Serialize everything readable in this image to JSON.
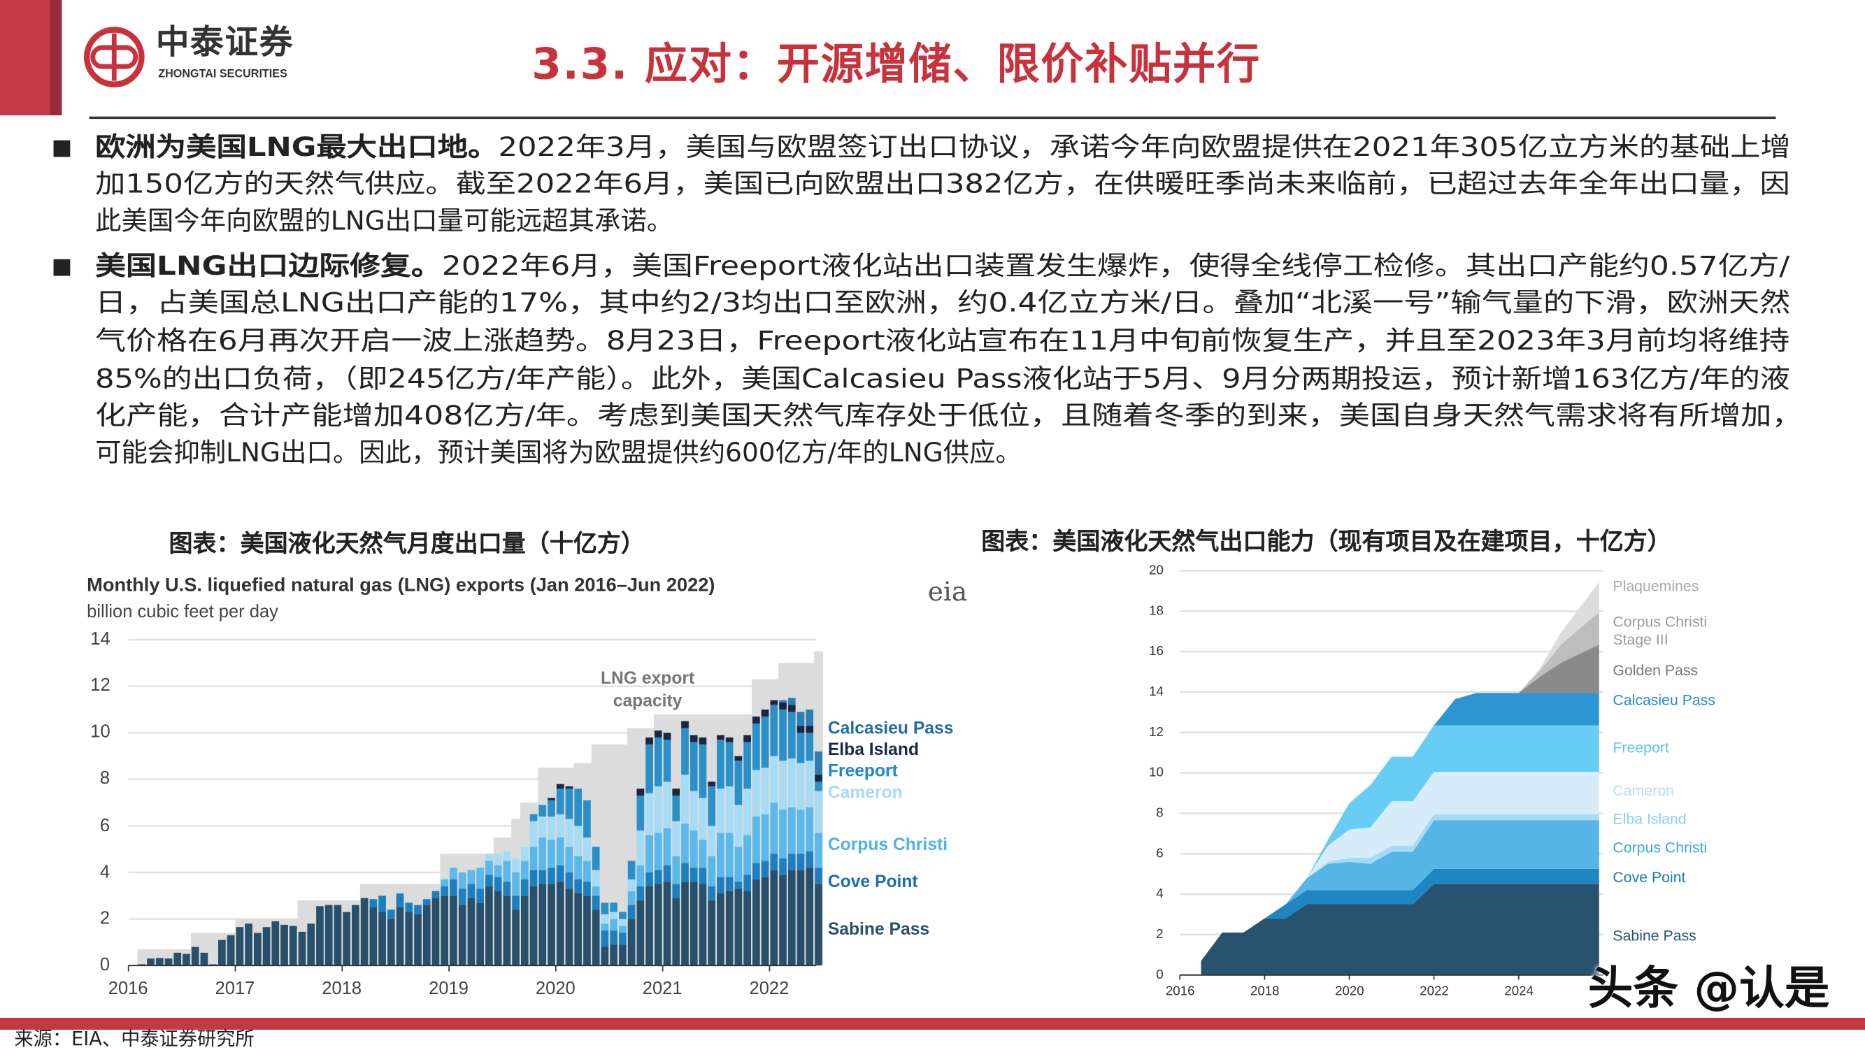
{
  "header": {
    "logo_cn": "中泰证券",
    "logo_en": "ZHONGTAI SECURITIES",
    "title": "3.3.  应对：开源增储、限价补贴并行",
    "brand_color": "#c8323c"
  },
  "paragraphs": [
    {
      "lead": "欧洲为美国LNG最大出口地。",
      "lines": [
        "2022年3月，美国与欧盟签订出口协议，承诺今年向欧盟提供在2021年305亿立方米的基础上增",
        "加150亿方的天然气供应。截至2022年6月，美国已向欧盟出口382亿方，在供暖旺季尚未来临前，已超过去年全年出口量，因",
        "此美国今年向欧盟的LNG出口量可能远超其承诺。"
      ]
    },
    {
      "lead": "美国LNG出口边际修复。",
      "lines": [
        "2022年6月，美国Freeport液化站出口装置发生爆炸，使得全线停工检修。其出口产能约0.57亿方/",
        "日，占美国总LNG出口产能的17%，其中约2/3均出口至欧洲，约0.4亿立方米/日。叠加“北溪一号”输气量的下滑，欧洲天然",
        "气价格在6月再次开启一波上涨趋势。8月23日，Freeport液化站宣布在11月中旬前恢复生产，并且至2023年3月前均将维持",
        "85%的出口负荷，（即245亿方/年产能）。此外，美国Calcasieu Pass液化站于5月、9月分两期投运，预计新增163亿方/年的液",
        "化产能，合计产能增加408亿方/年。考虑到美国天然气库存处于低位，且随着冬季的到来，美国自身天然气需求将有所增加，",
        "可能会抑制LNG出口。因此，预计美国将为欧盟提供约600亿方/年的LNG供应。"
      ]
    }
  ],
  "figure_captions": [
    "图表：美国液化天然气月度出口量（十亿方）",
    "图表：美国液化天然气出口能力（现有项目及在建项目，十亿方）"
  ],
  "chart_data": [
    {
      "type": "bar",
      "stacked": true,
      "title": "Monthly U.S. liquefied natural gas (LNG) exports (Jan 2016–Jun 2022)",
      "ylabel": "billion cubic feet per day",
      "logo": "eia",
      "x_start": "2016-01",
      "x_end": "2022-06",
      "frequency": "monthly",
      "xticks": [
        "2016",
        "2017",
        "2018",
        "2019",
        "2020",
        "2021",
        "2022"
      ],
      "yticks": [
        0,
        2,
        4,
        6,
        8,
        10,
        12,
        14
      ],
      "ylim": [
        0,
        14
      ],
      "grid": true,
      "annotation": [
        "LNG export",
        "capacity"
      ],
      "capacity_color": "#dcdcdc",
      "capacity_steps": [
        [
          "2016-02",
          0.7
        ],
        [
          "2016-08",
          1.4
        ],
        [
          "2017-01",
          2.0
        ],
        [
          "2017-08",
          2.8
        ],
        [
          "2018-03",
          3.5
        ],
        [
          "2018-12",
          4.8
        ],
        [
          "2019-06",
          5.5
        ],
        [
          "2019-08",
          6.3
        ],
        [
          "2019-09",
          7.0
        ],
        [
          "2019-11",
          8.5
        ],
        [
          "2020-03",
          8.7
        ],
        [
          "2020-05",
          9.5
        ],
        [
          "2020-09",
          10.2
        ],
        [
          "2020-12",
          10.8
        ],
        [
          "2021-11",
          12.3
        ],
        [
          "2022-02",
          13.0
        ],
        [
          "2022-06",
          13.5
        ]
      ],
      "series": [
        {
          "name": "Sabine Pass",
          "color": "#28506b",
          "label_color": "#28506b",
          "values": [
            0,
            0.05,
            0.3,
            0.32,
            0.3,
            0.55,
            0.5,
            0.8,
            0.55,
            0.05,
            1.1,
            1.3,
            1.65,
            1.8,
            1.4,
            1.65,
            1.9,
            1.75,
            1.7,
            1.45,
            1.8,
            2.55,
            2.6,
            2.6,
            2.3,
            2.6,
            2.9,
            2.5,
            2.3,
            2.0,
            2.5,
            2.3,
            2.2,
            2.6,
            2.9,
            3.0,
            3.0,
            2.6,
            2.9,
            2.7,
            3.4,
            3.2,
            3.0,
            2.4,
            3.0,
            3.4,
            3.5,
            3.5,
            3.6,
            3.3,
            3.1,
            3.0,
            2.4,
            0.8,
            0.9,
            0.9,
            2.0,
            2.8,
            3.4,
            3.5,
            3.6,
            2.9,
            3.6,
            3.6,
            3.5,
            2.8,
            3.1,
            3.2,
            3.3,
            3.2,
            3.7,
            3.8,
            4.1,
            3.9,
            4.1,
            4.1,
            4.2,
            3.5
          ]
        },
        {
          "name": "Cove Point",
          "color": "#1e7fbf",
          "label_color": "#1e6fa8",
          "values": [
            0,
            0,
            0,
            0,
            0,
            0,
            0,
            0,
            0,
            0,
            0,
            0,
            0,
            0,
            0,
            0,
            0,
            0,
            0,
            0,
            0,
            0,
            0,
            0,
            0,
            0,
            0,
            0.35,
            0.7,
            0.4,
            0.6,
            0.4,
            0.4,
            0.25,
            0.3,
            0.4,
            0.7,
            0.7,
            0.6,
            0.6,
            0.5,
            0.6,
            0.6,
            0.6,
            0.7,
            0.7,
            0.6,
            0.7,
            0.7,
            0.7,
            0.6,
            0.6,
            0.6,
            0.7,
            0.6,
            0.5,
            0.6,
            0.6,
            0.6,
            0.6,
            0.7,
            0.6,
            0.8,
            0.6,
            0.7,
            0.6,
            0.7,
            0.6,
            0.3,
            0.7,
            0.7,
            0.7,
            0.7,
            0.7,
            0.7,
            0.7,
            0.7,
            0.7
          ]
        },
        {
          "name": "Corpus Christi",
          "color": "#5ab8ea",
          "label_color": "#4fb3e6",
          "values": [
            0,
            0,
            0,
            0,
            0,
            0,
            0,
            0,
            0,
            0,
            0,
            0,
            0,
            0,
            0,
            0,
            0,
            0,
            0,
            0,
            0,
            0,
            0,
            0,
            0,
            0,
            0,
            0,
            0,
            0,
            0,
            0,
            0,
            0,
            0,
            0.3,
            0.5,
            0.7,
            0.6,
            0.9,
            0.6,
            0.5,
            0.9,
            1.0,
            0.8,
            1.0,
            1.4,
            1.2,
            1.2,
            1.1,
            1.0,
            0.9,
            0.4,
            0.3,
            0.5,
            0.3,
            0.6,
            0.9,
            1.6,
            1.6,
            1.6,
            1.2,
            1.7,
            1.6,
            1.2,
            1.3,
            1.9,
            1.9,
            1.5,
            1.7,
            2.0,
            2.0,
            2.2,
            2.1,
            2.0,
            1.9,
            1.9,
            1.5
          ]
        },
        {
          "name": "Cameron",
          "color": "#a6dcf5",
          "label_color": "#a6dcf5",
          "values": [
            0,
            0,
            0,
            0,
            0,
            0,
            0,
            0,
            0,
            0,
            0,
            0,
            0,
            0,
            0,
            0,
            0,
            0,
            0,
            0,
            0,
            0,
            0,
            0,
            0,
            0,
            0,
            0,
            0,
            0,
            0,
            0,
            0,
            0,
            0,
            0,
            0,
            0,
            0,
            0,
            0.3,
            0.5,
            0.4,
            0.6,
            0.6,
            1.1,
            0.9,
            1.0,
            1.0,
            1.2,
            1.3,
            1.0,
            0.7,
            0.4,
            0.3,
            0.3,
            0.5,
            1.5,
            1.8,
            2.0,
            2.0,
            1.5,
            2.1,
            1.7,
            1.8,
            1.3,
            1.9,
            2.0,
            1.8,
            2.0,
            2.0,
            2.0,
            2.0,
            2.1,
            2.1,
            2.0,
            2.0,
            1.8
          ]
        },
        {
          "name": "Freeport",
          "color": "#2b8fc8",
          "label_color": "#1e88c8",
          "values": [
            0,
            0,
            0,
            0,
            0,
            0,
            0,
            0,
            0,
            0,
            0,
            0,
            0,
            0,
            0,
            0,
            0,
            0,
            0,
            0,
            0,
            0,
            0,
            0,
            0,
            0,
            0,
            0,
            0,
            0,
            0,
            0,
            0,
            0,
            0,
            0,
            0,
            0,
            0,
            0,
            0,
            0,
            0,
            0,
            0,
            0.3,
            0.5,
            0.7,
            1.1,
            1.3,
            1.6,
            1.6,
            1.0,
            0.5,
            0.4,
            0.3,
            0.8,
            1.5,
            2.1,
            2.1,
            1.8,
            1.1,
            2.0,
            2.1,
            2.3,
            1.7,
            2.1,
            1.9,
            1.9,
            2.0,
            2.0,
            2.2,
            2.2,
            2.2,
            2.0,
            1.3,
            1.2,
            0.4
          ]
        },
        {
          "name": "Elba Island",
          "color": "#1c2640",
          "label_color": "#1b2a44",
          "values": [
            0,
            0,
            0,
            0,
            0,
            0,
            0,
            0,
            0,
            0,
            0,
            0,
            0,
            0,
            0,
            0,
            0,
            0,
            0,
            0,
            0,
            0,
            0,
            0,
            0,
            0,
            0,
            0,
            0,
            0,
            0,
            0,
            0,
            0,
            0,
            0,
            0,
            0,
            0,
            0,
            0,
            0,
            0,
            0,
            0,
            0,
            0,
            0.1,
            0.2,
            0.1,
            0,
            0,
            0,
            0,
            0,
            0,
            0,
            0.3,
            0.3,
            0.3,
            0.3,
            0.3,
            0.3,
            0.3,
            0.3,
            0.2,
            0.2,
            0.2,
            0.2,
            0.3,
            0.3,
            0.3,
            0.2,
            0.3,
            0.3,
            0.3,
            0.3,
            0.3
          ]
        },
        {
          "name": "Calcasieu Pass",
          "color": "#2a7fb5",
          "label_color": "#1f6e9e",
          "values": [
            0,
            0,
            0,
            0,
            0,
            0,
            0,
            0,
            0,
            0,
            0,
            0,
            0,
            0,
            0,
            0,
            0,
            0,
            0,
            0,
            0,
            0,
            0,
            0,
            0,
            0,
            0,
            0,
            0,
            0,
            0,
            0,
            0,
            0,
            0,
            0,
            0,
            0,
            0,
            0,
            0,
            0,
            0,
            0,
            0,
            0,
            0,
            0,
            0,
            0,
            0,
            0,
            0,
            0,
            0,
            0,
            0,
            0,
            0,
            0,
            0,
            0,
            0,
            0,
            0,
            0,
            0,
            0,
            0,
            0,
            0,
            0,
            0,
            0.1,
            0.3,
            0.6,
            0.7,
            1.0
          ]
        }
      ]
    },
    {
      "type": "area",
      "stacked": true,
      "x": [
        2016.5,
        2017,
        2017.5,
        2018,
        2018.5,
        2019,
        2019.5,
        2020,
        2020.5,
        2021,
        2021.5,
        2022,
        2022.5,
        2023,
        2024,
        2024.5,
        2025,
        2025.9
      ],
      "xticks": [
        "2016",
        "2018",
        "2020",
        "2022",
        "2024"
      ],
      "yticks": [
        0,
        2,
        4,
        6,
        8,
        10,
        12,
        14,
        16,
        18,
        20
      ],
      "ylim": [
        0,
        20
      ],
      "grid": true,
      "series": [
        {
          "name": "Sabine Pass",
          "color": "#28536f",
          "label_color": "#28536f",
          "values": [
            0.7,
            2.1,
            2.1,
            2.8,
            2.8,
            3.5,
            3.5,
            3.5,
            3.5,
            3.5,
            3.5,
            4.5,
            4.5,
            4.5,
            4.5,
            4.5,
            4.5,
            4.5
          ]
        },
        {
          "name": "Cove Point",
          "color": "#1f86c2",
          "label_color": "#1f76b2",
          "values": [
            0,
            0,
            0,
            0,
            0.7,
            0.7,
            0.7,
            0.7,
            0.7,
            0.7,
            0.7,
            0.75,
            0.75,
            0.75,
            0.75,
            0.75,
            0.75,
            0.75
          ]
        },
        {
          "name": "Corpus Christi",
          "color": "#55b5e6",
          "label_color": "#3aa6de",
          "values": [
            0,
            0,
            0,
            0,
            0,
            0.6,
            1.3,
            1.4,
            1.3,
            1.9,
            1.9,
            2.4,
            2.4,
            2.4,
            2.4,
            2.4,
            2.4,
            2.4
          ]
        },
        {
          "name": "Elba Island",
          "color": "#a7dbf3",
          "label_color": "#8ccdee",
          "values": [
            0,
            0,
            0,
            0,
            0,
            0,
            0.1,
            0.2,
            0.3,
            0.3,
            0.3,
            0.3,
            0.3,
            0.3,
            0.3,
            0.3,
            0.3,
            0.3
          ]
        },
        {
          "name": "Cameron",
          "color": "#d6edf9",
          "label_color": "#b3def4",
          "values": [
            0,
            0,
            0,
            0,
            0,
            0,
            0.8,
            1.4,
            1.5,
            2.2,
            2.2,
            2.1,
            2.1,
            2.1,
            2.1,
            2.1,
            2.1,
            2.1
          ]
        },
        {
          "name": "Freeport",
          "color": "#67cdf5",
          "label_color": "#5ec4ef",
          "values": [
            0,
            0,
            0,
            0,
            0,
            0,
            0.3,
            1.3,
            2.1,
            2.2,
            2.2,
            2.3,
            2.3,
            2.3,
            2.3,
            2.3,
            2.3,
            2.3
          ]
        },
        {
          "name": "Calcasieu Pass",
          "color": "#2e95d3",
          "label_color": "#2290cc",
          "values": [
            0,
            0,
            0,
            0,
            0,
            0,
            0,
            0,
            0,
            0,
            0,
            0,
            1.3,
            1.6,
            1.6,
            1.6,
            1.6,
            1.6
          ]
        },
        {
          "name": "Golden Pass",
          "color": "#8a8a8a",
          "label_color": "#777777",
          "values": [
            0,
            0,
            0,
            0,
            0,
            0,
            0,
            0,
            0,
            0,
            0,
            0,
            0,
            0,
            0,
            0.8,
            1.5,
            2.4
          ]
        },
        {
          "name": "Corpus Christi Stage III",
          "color": "#bdbdbd",
          "label_color": "#9a9a9a",
          "values": [
            0,
            0,
            0,
            0,
            0,
            0,
            0,
            0,
            0,
            0,
            0,
            0,
            0,
            0,
            0,
            0.3,
            0.9,
            1.6
          ]
        },
        {
          "name": "Plaquemines",
          "color": "#dcdcdc",
          "label_color": "#aaaaaa",
          "values": [
            0,
            0,
            0,
            0,
            0,
            0,
            0,
            0,
            0,
            0,
            0,
            0,
            0,
            0,
            0,
            0.1,
            0.6,
            1.5
          ]
        }
      ]
    }
  ],
  "watermark": "头条 @认是",
  "source": "来源：EIA、中泰证券研究所"
}
